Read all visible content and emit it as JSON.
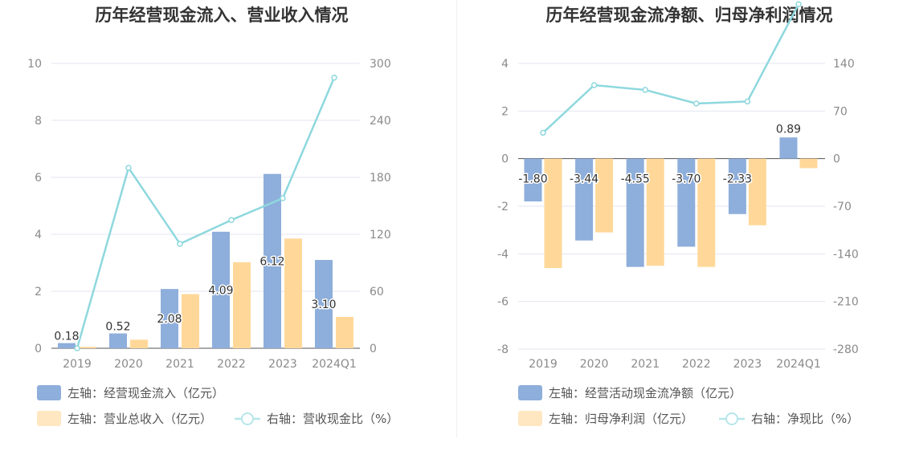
{
  "chart_data": [
    {
      "type": "bar",
      "title": "历年经营现金流入、营业收入情况",
      "categories": [
        "2019",
        "2020",
        "2021",
        "2022",
        "2023",
        "2024Q1"
      ],
      "left_axis": {
        "min": 0,
        "max": 10,
        "ticks": [
          "0",
          "2",
          "4",
          "6",
          "8",
          "10"
        ]
      },
      "right_axis": {
        "min": 0,
        "max": 300,
        "ticks": [
          "0",
          "60",
          "120",
          "180",
          "240",
          "300"
        ]
      },
      "series": [
        {
          "name": "左轴：经营现金流入（亿元）",
          "kind": "bar",
          "axis": "left",
          "color": "#8eaedb",
          "values": [
            0.18,
            0.52,
            2.08,
            4.09,
            6.12,
            3.1
          ],
          "labels": [
            "0.18",
            "0.52",
            "2.08",
            "4.09",
            "6.12",
            "3.10"
          ]
        },
        {
          "name": "左轴：营业总收入（亿元）",
          "kind": "bar",
          "axis": "left",
          "color": "#ffd899",
          "values": [
            0.05,
            0.3,
            1.9,
            3.02,
            3.85,
            1.1
          ]
        },
        {
          "name": "右轴：营收现金比（%）",
          "kind": "line",
          "axis": "right",
          "color": "#8ed8de",
          "values": [
            0,
            190,
            110,
            135,
            158,
            285
          ]
        }
      ]
    },
    {
      "type": "bar",
      "title": "历年经营现金流净额、归母净利润情况",
      "categories": [
        "2019",
        "2020",
        "2021",
        "2022",
        "2023",
        "2024Q1"
      ],
      "left_axis": {
        "min": -8,
        "max": 4,
        "ticks": [
          "-8",
          "-6",
          "-4",
          "-2",
          "0",
          "2",
          "4"
        ]
      },
      "right_axis": {
        "min": -280,
        "max": 140,
        "ticks": [
          "-280",
          "-210",
          "-140",
          "-70",
          "0",
          "70",
          "140"
        ]
      },
      "series": [
        {
          "name": "左轴：经营活动现金流净额（亿元）",
          "kind": "bar",
          "axis": "left",
          "color": "#8eaedb",
          "values": [
            -1.8,
            -3.44,
            -4.55,
            -3.7,
            -2.33,
            0.89
          ],
          "labels": [
            "-1.80",
            "-3.44",
            "-4.55",
            "-3.70",
            "-2.33",
            "0.89"
          ]
        },
        {
          "name": "左轴：归母净利润（亿元）",
          "kind": "bar",
          "axis": "left",
          "color": "#ffd899",
          "values": [
            -4.6,
            -3.1,
            -4.5,
            -4.55,
            -2.8,
            -0.4
          ]
        },
        {
          "name": "右轴：净现比（%）",
          "kind": "line",
          "axis": "right",
          "color": "#8ed8de",
          "values": [
            38,
            108,
            101,
            81,
            84,
            227
          ]
        }
      ]
    }
  ]
}
